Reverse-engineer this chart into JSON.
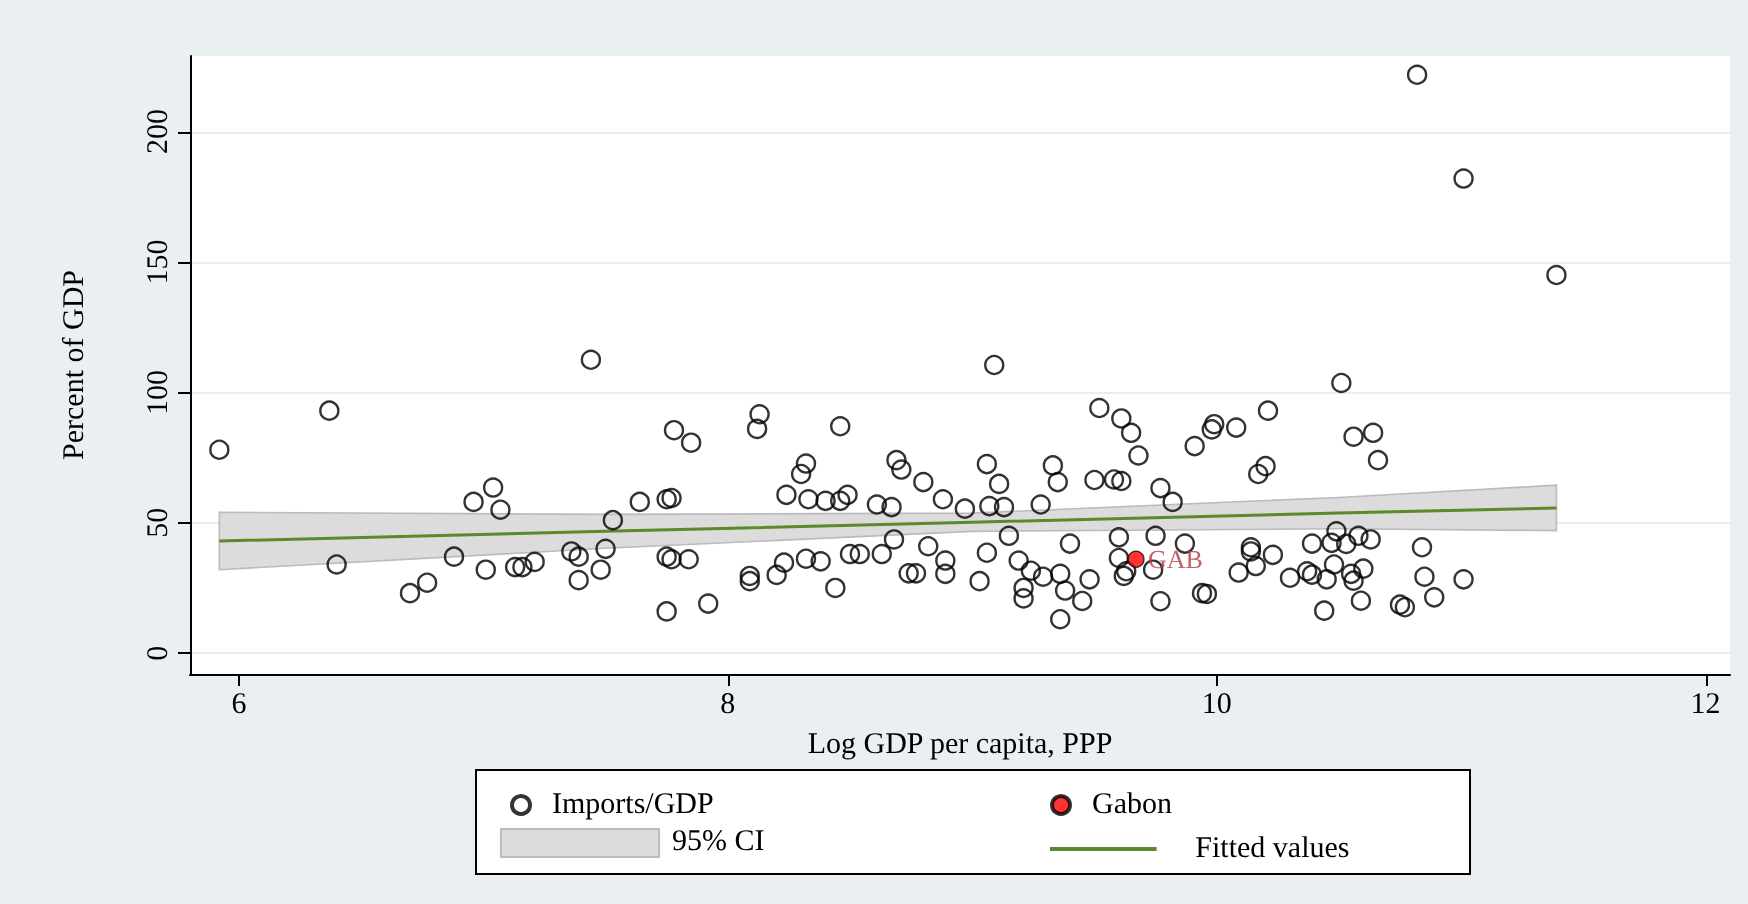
{
  "chart_data": {
    "type": "scatter",
    "xlabel": "Log GDP per capita, PPP",
    "ylabel": "Percent of GDP",
    "xlim": [
      5.8,
      12.1
    ],
    "ylim": [
      -8,
      229
    ],
    "xticks": [
      6,
      8,
      10,
      12
    ],
    "yticks": [
      0,
      50,
      100,
      150,
      200
    ],
    "grid": "y",
    "legend": "bottom",
    "annotations": [
      {
        "text": "GAB",
        "x": 9.67,
        "y": 36
      },
      "95% CI"
    ],
    "series": [
      {
        "name": "Imports/GDP",
        "type": "scatter",
        "marker": "circle",
        "color": "#000000",
        "x": [
          5.92,
          6.37,
          6.4,
          6.7,
          6.77,
          6.88,
          6.96,
          7.04,
          7.07,
          7.01,
          7.13,
          7.16,
          7.21,
          7.36,
          7.39,
          7.39,
          7.48,
          7.53,
          7.44,
          7.64,
          7.75,
          7.77,
          7.78,
          7.75,
          7.77,
          7.75,
          7.5,
          7.85,
          7.84,
          7.92,
          8.13,
          8.12,
          8.46,
          8.32,
          8.3,
          8.24,
          8.33,
          8.4,
          8.46,
          8.49,
          8.61,
          8.67,
          8.69,
          8.71,
          8.8,
          8.88,
          8.97,
          9.06,
          9.11,
          9.07,
          9.13,
          9.28,
          9.33,
          9.35,
          9.52,
          9.61,
          9.65,
          9.68,
          9.5,
          9.58,
          9.61,
          9.77,
          9.82,
          9.91,
          9.09,
          8.68,
          8.82,
          9.15,
          9.4,
          9.6,
          9.75,
          9.87,
          8.23,
          8.32,
          8.38,
          8.5,
          8.54,
          8.63,
          8.89,
          9.06,
          9.19,
          8.09,
          8.09,
          8.2,
          8.74,
          8.77,
          8.89,
          8.44,
          9.03,
          9.24,
          9.29,
          9.36,
          9.21,
          9.21,
          9.38,
          9.45,
          9.48,
          9.36,
          9.6,
          9.62,
          9.63,
          9.77,
          9.74,
          9.94,
          10.51,
          10.21,
          9.99,
          9.98,
          10.08,
          10.56,
          10.64,
          10.66,
          10.2,
          10.17,
          10.39,
          10.47,
          10.53,
          10.58,
          10.63,
          10.49,
          10.84,
          10.14,
          10.14,
          10.23,
          10.16,
          10.09,
          10.3,
          10.37,
          10.39,
          10.45,
          10.48,
          10.55,
          10.56,
          10.6,
          10.85,
          11.01,
          9.96,
          10.44,
          10.59,
          10.75,
          10.77,
          10.89,
          10.82,
          11.01,
          11.39
        ],
        "values": [
          78,
          93,
          34,
          23,
          27,
          37,
          58,
          63.5,
          55,
          32,
          33,
          33,
          35,
          39,
          37,
          28,
          32,
          51,
          112.5,
          58,
          59,
          59.5,
          85.5,
          37,
          36,
          16,
          40,
          80.7,
          36,
          19,
          91.6,
          86,
          87,
          72.7,
          68.7,
          60.7,
          59,
          58.4,
          58.4,
          60.7,
          57,
          56,
          74,
          70.4,
          65.6,
          59,
          55.4,
          72.5,
          64.9,
          56.4,
          56,
          57,
          72,
          65.6,
          94,
          90,
          84.5,
          75.8,
          66.4,
          66.6,
          66,
          63.3,
          58,
          79.4,
          110.5,
          43.6,
          41,
          45,
          42,
          44.4,
          45,
          42,
          34.7,
          36.2,
          35.2,
          38,
          38,
          38,
          35.5,
          38.5,
          35.5,
          29.6,
          27.6,
          30,
          30.6,
          30.6,
          30.4,
          25,
          27.6,
          31.6,
          29.3,
          30.4,
          25,
          21,
          24,
          20,
          28.3,
          13,
          36.5,
          29.6,
          31.4,
          19.9,
          32,
          23,
          103.6,
          93,
          87.8,
          85.8,
          86.5,
          83,
          84.5,
          74,
          71.7,
          68.7,
          42,
          42.3,
          41.9,
          45,
          43.6,
          46.7,
          40.6,
          40.6,
          39,
          37.7,
          33.4,
          30.9,
          28.9,
          31.4,
          30.1,
          28.3,
          34,
          30.4,
          27.8,
          32.4,
          29.3,
          28.3,
          22.7,
          16.3,
          20.1,
          18.6,
          17.6,
          21.4,
          221.8,
          182,
          145
        ]
      },
      {
        "name": "Gabon",
        "type": "scatter",
        "marker": "circle",
        "color": "#ff0000",
        "x": [
          9.67
        ],
        "values": [
          36
        ]
      },
      {
        "name": "Fitted values",
        "type": "line",
        "color": "#5a8a2a",
        "line_style": "solid",
        "marker": "none",
        "x": [
          5.92,
          7.5,
          9,
          10.5,
          11.39
        ],
        "values": [
          43,
          46.7,
          50.2,
          53.7,
          55.7
        ],
        "lower": [
          32,
          40.2,
          46.7,
          47.7,
          47
        ],
        "upper": [
          54,
          53.2,
          53.7,
          59.7,
          64.4
        ]
      }
    ]
  }
}
